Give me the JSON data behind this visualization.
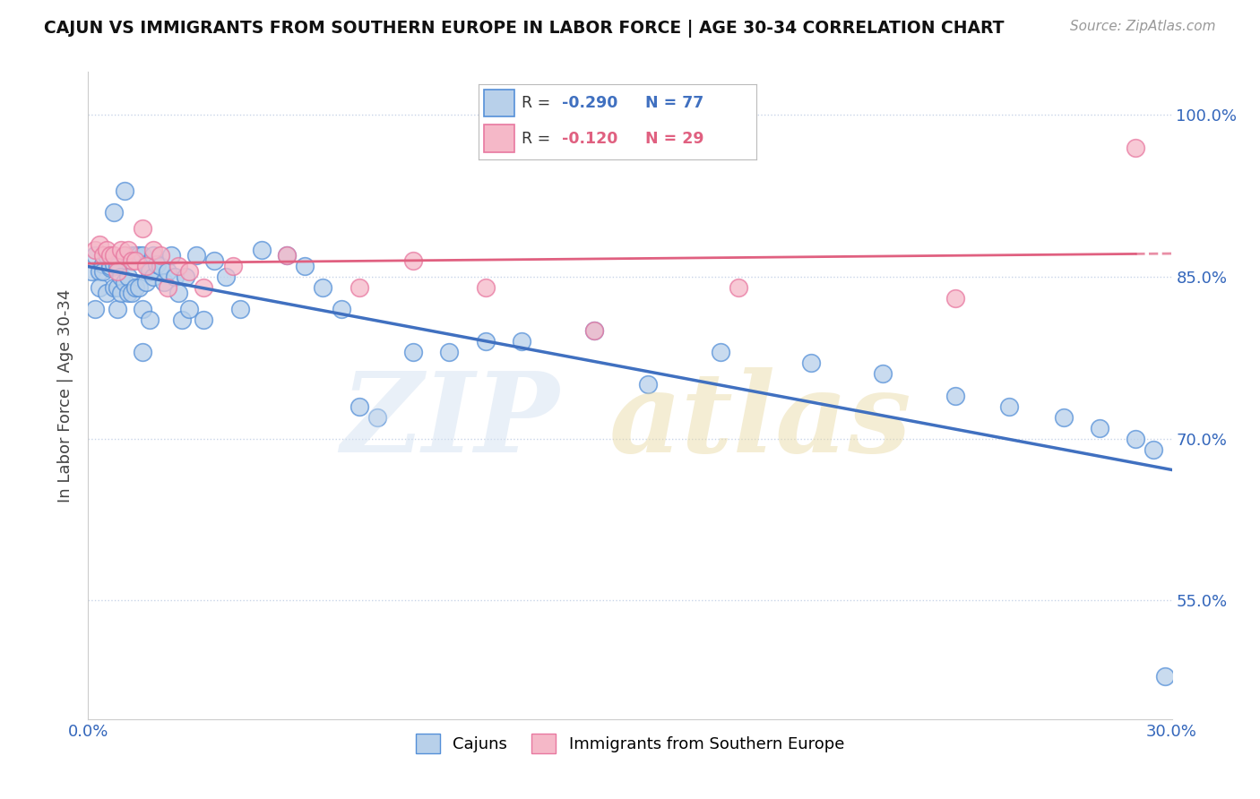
{
  "title": "CAJUN VS IMMIGRANTS FROM SOUTHERN EUROPE IN LABOR FORCE | AGE 30-34 CORRELATION CHART",
  "source": "Source: ZipAtlas.com",
  "ylabel": "In Labor Force | Age 30-34",
  "xlim": [
    0.0,
    0.3
  ],
  "ylim": [
    0.44,
    1.04
  ],
  "xtick_vals": [
    0.0,
    0.05,
    0.1,
    0.15,
    0.2,
    0.25,
    0.3
  ],
  "xtick_labels": [
    "0.0%",
    "",
    "",
    "",
    "",
    "",
    "30.0%"
  ],
  "ytick_vals": [
    1.0,
    0.85,
    0.7,
    0.55
  ],
  "ytick_labels": [
    "100.0%",
    "85.0%",
    "70.0%",
    "55.0%"
  ],
  "blue_R": "-0.290",
  "blue_N": "77",
  "pink_R": "-0.120",
  "pink_N": "29",
  "blue_fill": "#b8d0ea",
  "pink_fill": "#f5b8c8",
  "blue_edge": "#5590d8",
  "pink_edge": "#e878a0",
  "blue_line": "#4070c0",
  "pink_line": "#e06080",
  "grid_color": "#c8d4e8",
  "cajuns_x": [
    0.001,
    0.002,
    0.002,
    0.003,
    0.003,
    0.004,
    0.004,
    0.005,
    0.005,
    0.006,
    0.006,
    0.007,
    0.007,
    0.007,
    0.008,
    0.008,
    0.008,
    0.009,
    0.009,
    0.01,
    0.01,
    0.01,
    0.011,
    0.011,
    0.012,
    0.012,
    0.013,
    0.013,
    0.014,
    0.014,
    0.015,
    0.015,
    0.015,
    0.016,
    0.016,
    0.017,
    0.017,
    0.018,
    0.018,
    0.019,
    0.02,
    0.021,
    0.022,
    0.023,
    0.024,
    0.025,
    0.026,
    0.027,
    0.028,
    0.03,
    0.032,
    0.035,
    0.038,
    0.042,
    0.048,
    0.055,
    0.06,
    0.065,
    0.07,
    0.075,
    0.08,
    0.09,
    0.1,
    0.11,
    0.12,
    0.14,
    0.155,
    0.175,
    0.2,
    0.22,
    0.24,
    0.255,
    0.27,
    0.28,
    0.29,
    0.295,
    0.298
  ],
  "cajuns_y": [
    0.855,
    0.87,
    0.82,
    0.855,
    0.84,
    0.862,
    0.855,
    0.87,
    0.835,
    0.858,
    0.86,
    0.91,
    0.862,
    0.84,
    0.84,
    0.86,
    0.82,
    0.85,
    0.835,
    0.93,
    0.845,
    0.87,
    0.85,
    0.835,
    0.87,
    0.835,
    0.87,
    0.84,
    0.87,
    0.84,
    0.78,
    0.87,
    0.82,
    0.862,
    0.845,
    0.855,
    0.81,
    0.85,
    0.87,
    0.862,
    0.86,
    0.845,
    0.855,
    0.87,
    0.85,
    0.835,
    0.81,
    0.85,
    0.82,
    0.87,
    0.81,
    0.865,
    0.85,
    0.82,
    0.875,
    0.87,
    0.86,
    0.84,
    0.82,
    0.73,
    0.72,
    0.78,
    0.78,
    0.79,
    0.79,
    0.8,
    0.75,
    0.78,
    0.77,
    0.76,
    0.74,
    0.73,
    0.72,
    0.71,
    0.7,
    0.69,
    0.48
  ],
  "immigrants_x": [
    0.002,
    0.003,
    0.004,
    0.005,
    0.006,
    0.007,
    0.008,
    0.009,
    0.01,
    0.011,
    0.012,
    0.013,
    0.015,
    0.016,
    0.018,
    0.02,
    0.022,
    0.025,
    0.028,
    0.032,
    0.04,
    0.055,
    0.075,
    0.09,
    0.11,
    0.14,
    0.18,
    0.24,
    0.29
  ],
  "immigrants_y": [
    0.875,
    0.88,
    0.87,
    0.875,
    0.87,
    0.87,
    0.855,
    0.875,
    0.87,
    0.875,
    0.865,
    0.865,
    0.895,
    0.86,
    0.875,
    0.87,
    0.84,
    0.86,
    0.855,
    0.84,
    0.86,
    0.87,
    0.84,
    0.865,
    0.84,
    0.8,
    0.84,
    0.83,
    0.97
  ]
}
